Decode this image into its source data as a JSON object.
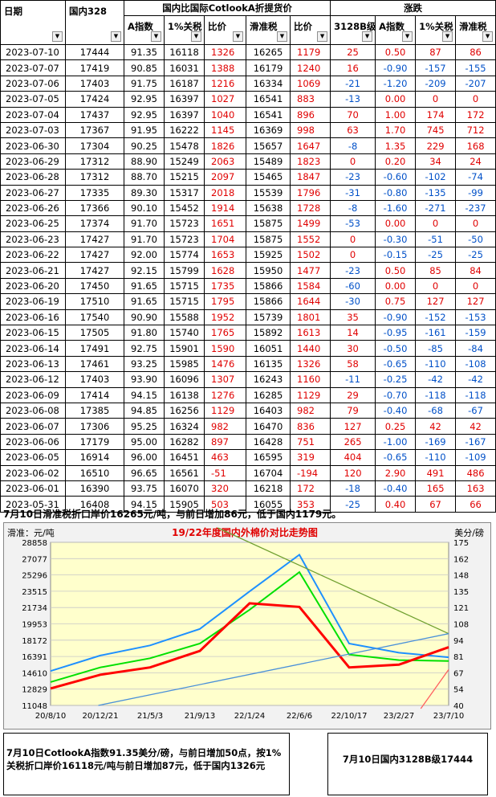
{
  "table": {
    "headers": {
      "date": "日期",
      "domestic": "国内328",
      "group1": "国内比国际CotlookA折提货价",
      "group2": "涨跌",
      "a_index": "A指数",
      "tariff1": "1%关税",
      "ratio1": "比价",
      "sliding": "滑准税",
      "ratio2": "比价",
      "chg_3128": "3128B级",
      "chg_a": "A指数",
      "chg_tariff": "1%关税",
      "chg_sliding": "滑准税"
    },
    "rows": [
      [
        "2023-07-10",
        "17444",
        "91.35",
        "16118",
        "1326",
        "16265",
        "1179",
        "25",
        "0.50",
        "87",
        "86"
      ],
      [
        "2023-07-07",
        "17419",
        "90.85",
        "16031",
        "1388",
        "16179",
        "1240",
        "16",
        "-0.90",
        "-157",
        "-155"
      ],
      [
        "2023-07-06",
        "17403",
        "91.75",
        "16187",
        "1216",
        "16334",
        "1069",
        "-21",
        "-1.20",
        "-209",
        "-207"
      ],
      [
        "2023-07-05",
        "17424",
        "92.95",
        "16397",
        "1027",
        "16541",
        "883",
        "-13",
        "0.00",
        "0",
        "0"
      ],
      [
        "2023-07-04",
        "17437",
        "92.95",
        "16397",
        "1040",
        "16541",
        "896",
        "70",
        "1.00",
        "174",
        "172"
      ],
      [
        "2023-07-03",
        "17367",
        "91.95",
        "16222",
        "1145",
        "16369",
        "998",
        "63",
        "1.70",
        "745",
        "712"
      ],
      [
        "2023-06-30",
        "17304",
        "90.25",
        "15478",
        "1826",
        "15657",
        "1647",
        "-8",
        "1.35",
        "229",
        "168"
      ],
      [
        "2023-06-29",
        "17312",
        "88.90",
        "15249",
        "2063",
        "15489",
        "1823",
        "0",
        "0.20",
        "34",
        "24"
      ],
      [
        "2023-06-28",
        "17312",
        "88.70",
        "15215",
        "2097",
        "15465",
        "1847",
        "-23",
        "-0.60",
        "-102",
        "-74"
      ],
      [
        "2023-06-27",
        "17335",
        "89.30",
        "15317",
        "2018",
        "15539",
        "1796",
        "-31",
        "-0.80",
        "-135",
        "-99"
      ],
      [
        "2023-06-26",
        "17366",
        "90.10",
        "15452",
        "1914",
        "15638",
        "1728",
        "-8",
        "-1.60",
        "-271",
        "-237"
      ],
      [
        "2023-06-25",
        "17374",
        "91.70",
        "15723",
        "1651",
        "15875",
        "1499",
        "-53",
        "0.00",
        "0",
        "0"
      ],
      [
        "2023-06-23",
        "17427",
        "91.70",
        "15723",
        "1704",
        "15875",
        "1552",
        "0",
        "-0.30",
        "-51",
        "-50"
      ],
      [
        "2023-06-22",
        "17427",
        "92.00",
        "15774",
        "1653",
        "15925",
        "1502",
        "0",
        "-0.15",
        "-25",
        "-25"
      ],
      [
        "2023-06-21",
        "17427",
        "92.15",
        "15799",
        "1628",
        "15950",
        "1477",
        "-23",
        "0.50",
        "85",
        "84"
      ],
      [
        "2023-06-20",
        "17450",
        "91.65",
        "15715",
        "1735",
        "15866",
        "1584",
        "-60",
        "0.00",
        "0",
        "0"
      ],
      [
        "2023-06-19",
        "17510",
        "91.65",
        "15715",
        "1795",
        "15866",
        "1644",
        "-30",
        "0.75",
        "127",
        "127"
      ],
      [
        "2023-06-16",
        "17540",
        "90.90",
        "15588",
        "1952",
        "15739",
        "1801",
        "35",
        "-0.90",
        "-152",
        "-153"
      ],
      [
        "2023-06-15",
        "17505",
        "91.80",
        "15740",
        "1765",
        "15892",
        "1613",
        "14",
        "-0.95",
        "-161",
        "-159"
      ],
      [
        "2023-06-14",
        "17491",
        "92.75",
        "15901",
        "1590",
        "16051",
        "1440",
        "30",
        "-0.50",
        "-85",
        "-84"
      ],
      [
        "2023-06-13",
        "17461",
        "93.25",
        "15985",
        "1476",
        "16135",
        "1326",
        "58",
        "-0.65",
        "-110",
        "-108"
      ],
      [
        "2023-06-12",
        "17403",
        "93.90",
        "16096",
        "1307",
        "16243",
        "1160",
        "-11",
        "-0.25",
        "-42",
        "-42"
      ],
      [
        "2023-06-09",
        "17414",
        "94.15",
        "16138",
        "1276",
        "16285",
        "1129",
        "29",
        "-0.70",
        "-118",
        "-118"
      ],
      [
        "2023-06-08",
        "17385",
        "94.85",
        "16256",
        "1129",
        "16403",
        "982",
        "79",
        "-0.40",
        "-68",
        "-67"
      ],
      [
        "2023-06-07",
        "17306",
        "95.25",
        "16324",
        "982",
        "16470",
        "836",
        "127",
        "0.25",
        "42",
        "42"
      ],
      [
        "2023-06-06",
        "17179",
        "95.00",
        "16282",
        "897",
        "16428",
        "751",
        "265",
        "-1.00",
        "-169",
        "-167"
      ],
      [
        "2023-06-05",
        "16914",
        "96.00",
        "16451",
        "463",
        "16595",
        "319",
        "404",
        "-0.65",
        "-110",
        "-109"
      ],
      [
        "2023-06-02",
        "16510",
        "96.65",
        "16561",
        "-51",
        "16704",
        "-194",
        "120",
        "2.90",
        "491",
        "486"
      ],
      [
        "2023-06-01",
        "16390",
        "93.75",
        "16070",
        "320",
        "16218",
        "172",
        "-18",
        "-0.40",
        "165",
        "163"
      ],
      [
        "2023-05-31",
        "16408",
        "94.15",
        "15905",
        "503",
        "16055",
        "353",
        "-25",
        "0.40",
        "67",
        "66"
      ]
    ]
  },
  "note1": "7月10日滑准税折口岸价16265元/吨，与前日增加86元，低于国内1179元。",
  "chart": {
    "title": "19/22年度国内外棉价对比走势图",
    "left_unit": "滑准：元/吨",
    "right_unit": "美分/磅",
    "left_ticks": [
      "28858",
      "27077",
      "25296",
      "23515",
      "21734",
      "19953",
      "18172",
      "16391",
      "14610",
      "12829",
      "11048"
    ],
    "right_ticks": [
      "175",
      "162",
      "148",
      "135",
      "121",
      "108",
      "94",
      "81",
      "67",
      "54",
      "40"
    ],
    "x_ticks": [
      "20/8/10",
      "20/12/21",
      "21/5/3",
      "21/9/13",
      "22/1/24",
      "22/6/6",
      "22/10/17",
      "23/2/27",
      "23/7/10"
    ]
  },
  "chart_data": {
    "type": "line",
    "title": "19/22年度国内外棉价对比走势图",
    "ylabel": "滑准：元/吨",
    "y2label": "美分/磅",
    "ylim": [
      11048,
      28858
    ],
    "y2lim": [
      40,
      175
    ],
    "x": [
      "20/8/10",
      "20/12/21",
      "21/5/3",
      "21/9/13",
      "22/1/24",
      "22/6/6",
      "22/10/17",
      "23/2/27",
      "23/7/10"
    ],
    "series": [
      {
        "name": "",
        "color": "#1e90ff",
        "axis": "left",
        "values": [
          14800,
          16500,
          17600,
          19400,
          23500,
          27500,
          17800,
          16800,
          16300
        ]
      },
      {
        "name": "",
        "color": "#00e000",
        "axis": "left",
        "values": [
          13600,
          15200,
          16200,
          17800,
          21500,
          25600,
          16600,
          16000,
          15900
        ]
      },
      {
        "name": "",
        "color": "#ff0000",
        "axis": "left",
        "values": [
          12900,
          14400,
          15200,
          17000,
          22200,
          21800,
          15200,
          15500,
          17400
        ]
      }
    ],
    "grid": true
  },
  "bottom_left": "7月10日CotlookA指数91.35美分/磅，与前日增加50点，按1%关税折口岸价16118元/吨与前日增加87元，低于国内1326元",
  "bottom_right": "7月10日国内3128B级17444"
}
